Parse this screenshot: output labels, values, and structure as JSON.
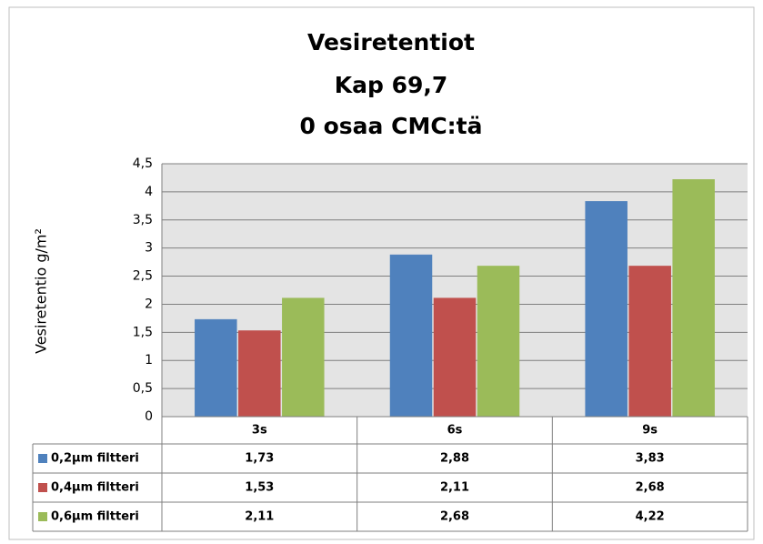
{
  "chart_data": {
    "type": "bar",
    "title": [
      "Vesiretentiot",
      "Kap 69,7",
      "0 osaa CMC:tä"
    ],
    "y_label": "Vesiretentio g/m²",
    "categories": [
      "3s",
      "6s",
      "9s"
    ],
    "series": [
      {
        "name": "0,2µm filtteri",
        "color": "#4f81bd",
        "values": [
          1.73,
          2.88,
          3.83
        ],
        "value_labels": [
          "1,73",
          "2,88",
          "3,83"
        ]
      },
      {
        "name": "0,4µm filtteri",
        "color": "#c0504d",
        "values": [
          1.53,
          2.11,
          2.68
        ],
        "value_labels": [
          "1,53",
          "2,11",
          "2,68"
        ]
      },
      {
        "name": "0,6µm filtteri",
        "color": "#9bbb59",
        "values": [
          2.11,
          2.68,
          4.22
        ],
        "value_labels": [
          "2,11",
          "2,68",
          "4,22"
        ]
      }
    ],
    "ylim": [
      0,
      4.5
    ],
    "yticks": [
      0,
      {
        "value": 0.5,
        "label": "0,5"
      },
      1,
      {
        "value": 1.5,
        "label": "1,5"
      },
      2,
      {
        "value": 2.5,
        "label": "2,5"
      },
      3,
      {
        "value": 3.5,
        "label": "3,5"
      },
      4,
      {
        "value": 4.5,
        "label": "4,5"
      }
    ],
    "grid": true
  }
}
